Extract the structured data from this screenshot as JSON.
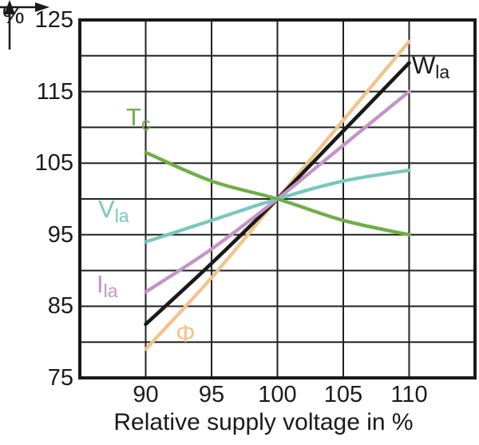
{
  "figure": {
    "y_unit_label": "%",
    "x_axis_title": "Relative supply voltage in %"
  },
  "chart_data": {
    "type": "line",
    "title": "",
    "xlabel": "Relative supply voltage in %",
    "ylabel": "%",
    "xlim": [
      85,
      115
    ],
    "ylim": [
      75,
      125
    ],
    "grid": true,
    "grid_step": 5,
    "x_tick_values": [
      90,
      95,
      100,
      105,
      110
    ],
    "x_tick_labels": [
      "90",
      "95",
      "100",
      "105",
      "110"
    ],
    "y_tick_values": [
      125,
      115,
      105,
      95,
      85,
      75
    ],
    "y_tick_labels": [
      "125",
      "115",
      "105",
      "95",
      "85",
      "75"
    ],
    "legend_position": "inline-labels",
    "axis_color": "#1a1a1a",
    "grid_color": "#222222",
    "x": [
      90,
      95,
      100,
      105,
      110
    ],
    "series": [
      {
        "name": "Phi",
        "label": "Φ",
        "label_sub": "",
        "color": "#F3C28B",
        "values": [
          79,
          89,
          100,
          111,
          122
        ]
      },
      {
        "name": "W_la",
        "label": "W",
        "label_sub": "la",
        "color": "#1A1A1A",
        "values": [
          82.5,
          91,
          100,
          109.5,
          119
        ]
      },
      {
        "name": "I_la",
        "label": "I",
        "label_sub": "la",
        "color": "#C493C8",
        "values": [
          87,
          93,
          100,
          107.5,
          115
        ]
      },
      {
        "name": "V_la",
        "label": "V",
        "label_sub": "la",
        "color": "#79C7BC",
        "values": [
          94,
          97,
          100,
          102.5,
          104
        ]
      },
      {
        "name": "T_c",
        "label": "T",
        "label_sub": "c",
        "color": "#6FAE47",
        "values": [
          106.5,
          102.5,
          100,
          97,
          95
        ]
      }
    ]
  }
}
